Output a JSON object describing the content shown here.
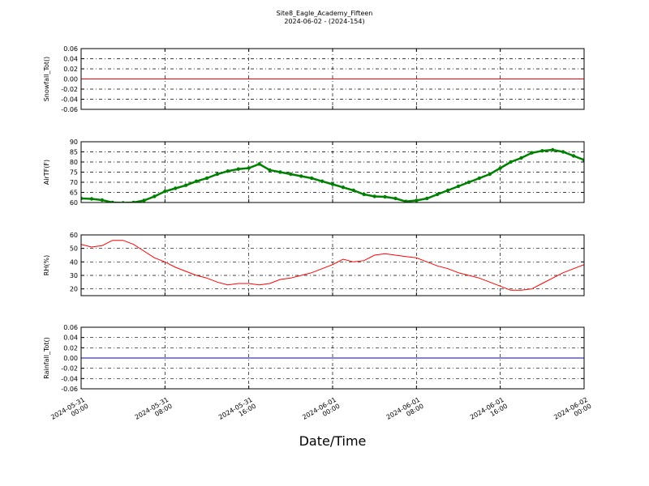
{
  "figure": {
    "title": "Site8_Eagle_Academy_Fifteen",
    "subtitle": "2024-06-02 - (2024-154)",
    "xlabel": "Date/Time"
  },
  "chart_data": [
    {
      "type": "line",
      "title": "",
      "ylabel": "Snowfall_Tot()",
      "ylim": [
        -0.06,
        0.06
      ],
      "yticks": [
        "0.06",
        "0.04",
        "0.02",
        "0.00",
        "-0.02",
        "-0.04",
        "-0.06"
      ],
      "grid": true,
      "series": [
        {
          "color": "#ff0000",
          "marker": "none",
          "x": [
            0,
            48
          ],
          "y": [
            0,
            0
          ]
        }
      ]
    },
    {
      "type": "line",
      "title": "",
      "ylabel": "AirTF(F)",
      "ylim": [
        60,
        90
      ],
      "yticks": [
        "90",
        "85",
        "80",
        "75",
        "70",
        "65",
        "60"
      ],
      "grid": true,
      "series": [
        {
          "color": "#008000",
          "marker": "dot",
          "x": [
            0,
            1,
            2,
            3,
            4,
            5,
            6,
            7,
            8,
            9,
            10,
            11,
            12,
            13,
            14,
            15,
            16,
            17,
            18,
            19,
            20,
            21,
            22,
            23,
            24,
            25,
            26,
            27,
            28,
            29,
            30,
            31,
            32,
            33,
            34,
            35,
            36,
            37,
            38,
            39,
            40,
            41,
            42,
            43,
            44,
            45,
            46,
            47,
            48
          ],
          "y": [
            62,
            61.8,
            61.2,
            60,
            59.8,
            60,
            61,
            63,
            65.5,
            67,
            68.5,
            70.5,
            72,
            74,
            75.5,
            76.5,
            77,
            79,
            76,
            75,
            74,
            73,
            72,
            70.5,
            69,
            67.5,
            66,
            64,
            63,
            62.8,
            62,
            60.5,
            61,
            62,
            64,
            66,
            68,
            70,
            72,
            74,
            77,
            80,
            82,
            84.5,
            85.5,
            86,
            85,
            83,
            81
          ]
        }
      ]
    },
    {
      "type": "line",
      "title": "",
      "ylabel": "RH(%)",
      "ylim": [
        15,
        60
      ],
      "yticks": [
        "60",
        "50",
        "40",
        "30",
        "20"
      ],
      "grid": true,
      "series": [
        {
          "color": "#ff0000",
          "marker": "none",
          "x": [
            0,
            1,
            2,
            3,
            4,
            5,
            6,
            7,
            8,
            9,
            10,
            11,
            12,
            13,
            14,
            15,
            16,
            17,
            18,
            19,
            20,
            21,
            22,
            23,
            24,
            25,
            26,
            27,
            28,
            29,
            30,
            31,
            32,
            33,
            34,
            35,
            36,
            37,
            38,
            39,
            40,
            41,
            42,
            43,
            44,
            45,
            46,
            47,
            48
          ],
          "y": [
            53,
            51,
            52,
            56,
            56,
            53,
            48,
            43,
            40,
            36,
            33,
            30,
            28,
            25,
            23,
            24,
            24,
            23,
            24,
            27,
            28,
            30,
            32,
            35,
            38,
            42,
            40,
            41,
            45,
            46,
            45,
            44,
            43,
            40,
            37,
            35,
            32,
            30,
            28,
            25,
            22,
            19,
            19,
            20,
            24,
            28,
            32,
            35,
            38
          ]
        }
      ]
    },
    {
      "type": "line",
      "title": "",
      "ylabel": "Rainfall_Tot()",
      "ylim": [
        -0.06,
        0.06
      ],
      "yticks": [
        "0.06",
        "0.04",
        "0.02",
        "0.00",
        "-0.02",
        "-0.04",
        "-0.06"
      ],
      "grid": true,
      "series": [
        {
          "color": "#0000cc",
          "marker": "none",
          "x": [
            0,
            48
          ],
          "y": [
            0,
            0
          ]
        }
      ]
    }
  ],
  "xaxis": {
    "range_hours": [
      0,
      48
    ],
    "ticks": [
      {
        "hour": 0,
        "line1": "2024-05-31",
        "line2": "00:00"
      },
      {
        "hour": 8,
        "line1": "2024-05-31",
        "line2": "08:00"
      },
      {
        "hour": 16,
        "line1": "2024-05-31",
        "line2": "16:00"
      },
      {
        "hour": 24,
        "line1": "2024-06-01",
        "line2": "00:00"
      },
      {
        "hour": 32,
        "line1": "2024-06-01",
        "line2": "08:00"
      },
      {
        "hour": 40,
        "line1": "2024-06-01",
        "line2": "16:00"
      },
      {
        "hour": 48,
        "line1": "2024-06-02",
        "line2": "00:00"
      }
    ]
  }
}
